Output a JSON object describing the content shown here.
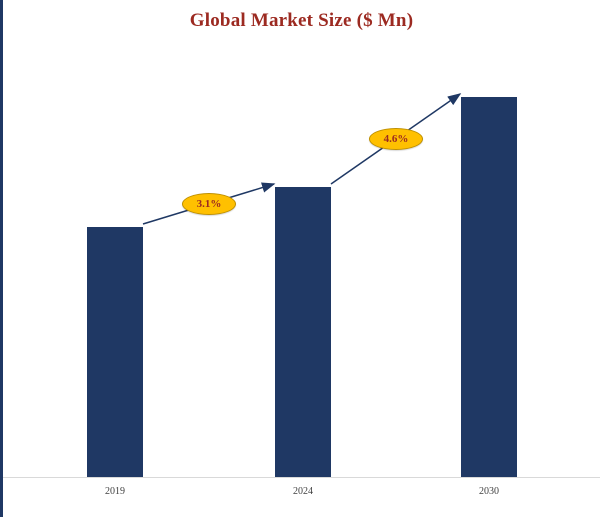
{
  "chart": {
    "title": "Global Market Size ($ Mn)"
  },
  "chart_data": {
    "type": "bar",
    "title": "Global Market Size ($ Mn)",
    "categories": [
      "2019",
      "2024",
      "2030"
    ],
    "values": [
      100,
      116,
      152
    ],
    "values_note": "relative index (no y-axis labels shown; 2019 = 100, inferred from bar heights and CAGR annotations)",
    "growth_annotations": [
      {
        "from": "2019",
        "to": "2024",
        "label": "3.1%"
      },
      {
        "from": "2024",
        "to": "2030",
        "label": "4.6%"
      }
    ],
    "xlabel": "",
    "ylabel": "",
    "y_axis_visible": false,
    "grid": false,
    "legend": "none",
    "colors": {
      "bar": "#1F3864",
      "title_text": "#9C2A21",
      "annotation_fill": "#FFC000",
      "annotation_border": "#BF9000",
      "annotation_text": "#9C2A21",
      "arrow": "#1F3864",
      "axis_line": "#D9D9D9",
      "accent_border": "#1F3864"
    }
  }
}
